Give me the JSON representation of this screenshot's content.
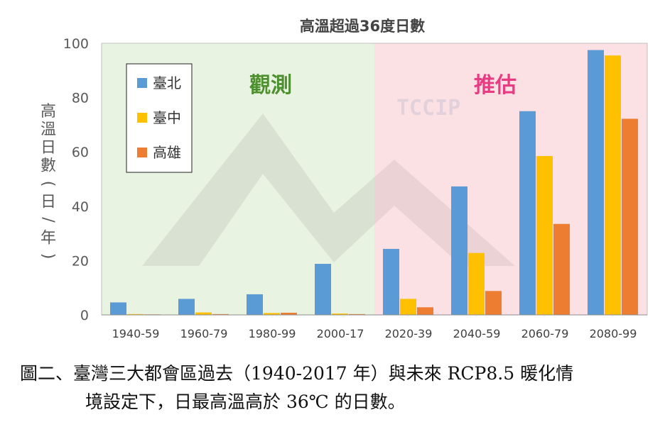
{
  "chart_data": {
    "type": "bar",
    "title": "高溫超過36度日數",
    "ylabel": "高溫日數(日/年)",
    "xlabel": "",
    "ylim": [
      0,
      100
    ],
    "yticks": [
      0,
      20,
      40,
      60,
      80,
      100
    ],
    "grid": false,
    "legend_position": "top-left",
    "categories": [
      "1940-59",
      "1960-79",
      "1980-99",
      "2000-17",
      "2020-39",
      "2040-59",
      "2060-79",
      "2080-99"
    ],
    "series": [
      {
        "name": "臺北",
        "color": "#5B9BD5",
        "values": [
          4.6,
          5.9,
          7.6,
          18.8,
          24.3,
          47.3,
          75.0,
          97.5
        ]
      },
      {
        "name": "臺中",
        "color": "#FFC000",
        "values": [
          0.3,
          0.9,
          0.7,
          0.5,
          5.9,
          22.8,
          58.5,
          95.5
        ]
      },
      {
        "name": "高雄",
        "color": "#ED7D31",
        "values": [
          0.2,
          0.3,
          0.8,
          0.3,
          2.8,
          8.8,
          33.5,
          72.2
        ]
      }
    ],
    "regions": [
      {
        "label": "觀測",
        "color": "#E8F3E1",
        "label_color": "#4E8F2F",
        "from": 0,
        "to": 4
      },
      {
        "label": "推估",
        "color": "#FCE1E4",
        "label_color": "#E83C82",
        "from": 4,
        "to": 8
      }
    ],
    "watermark": "TCCIP"
  },
  "caption": {
    "line1": "圖二、臺灣三大都會區過去（1940-2017 年）與未來 RCP8.5 暖化情",
    "line2": "境設定下，日最高溫高於 36℃ 的日數。"
  }
}
